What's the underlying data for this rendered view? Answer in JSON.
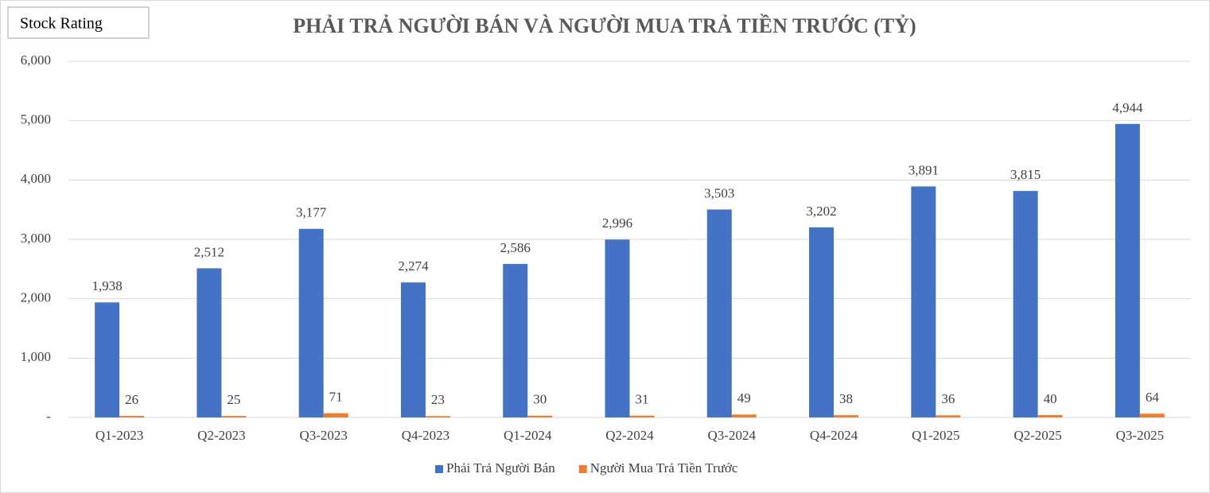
{
  "chart_data": {
    "type": "bar",
    "title": "PHẢI TRẢ NGƯỜI BÁN VÀ NGƯỜI MUA TRẢ TIỀN TRƯỚC (TỶ)",
    "badge": "Stock Rating",
    "categories": [
      "Q1-2023",
      "Q2-2023",
      "Q3-2023",
      "Q4-2023",
      "Q1-2024",
      "Q2-2024",
      "Q3-2024",
      "Q4-2024",
      "Q1-2025",
      "Q2-2025",
      "Q3-2025"
    ],
    "series": [
      {
        "name": "Phải Trả Người Bán",
        "color": "#4472c4",
        "values": [
          1938,
          2512,
          3177,
          2274,
          2586,
          2996,
          3503,
          3202,
          3891,
          3815,
          4944
        ],
        "value_labels": [
          "1,938",
          "2,512",
          "3,177",
          "2,274",
          "2,586",
          "2,996",
          "3,503",
          "3,202",
          "3,891",
          "3,815",
          "4,944"
        ]
      },
      {
        "name": "Người Mua Trả Tiền Trước",
        "color": "#ed7d31",
        "values": [
          26,
          25,
          71,
          23,
          30,
          31,
          49,
          38,
          36,
          40,
          64
        ]
      }
    ],
    "ylim": [
      0,
      6000
    ],
    "yticks": [
      {
        "value": 0,
        "label": "-"
      },
      {
        "value": 1000,
        "label": "1,000"
      },
      {
        "value": 2000,
        "label": "2,000"
      },
      {
        "value": 3000,
        "label": "3,000"
      },
      {
        "value": 4000,
        "label": "4,000"
      },
      {
        "value": 5000,
        "label": "5,000"
      },
      {
        "value": 6000,
        "label": "6,000"
      }
    ],
    "grid": true,
    "legend": "bottom"
  }
}
